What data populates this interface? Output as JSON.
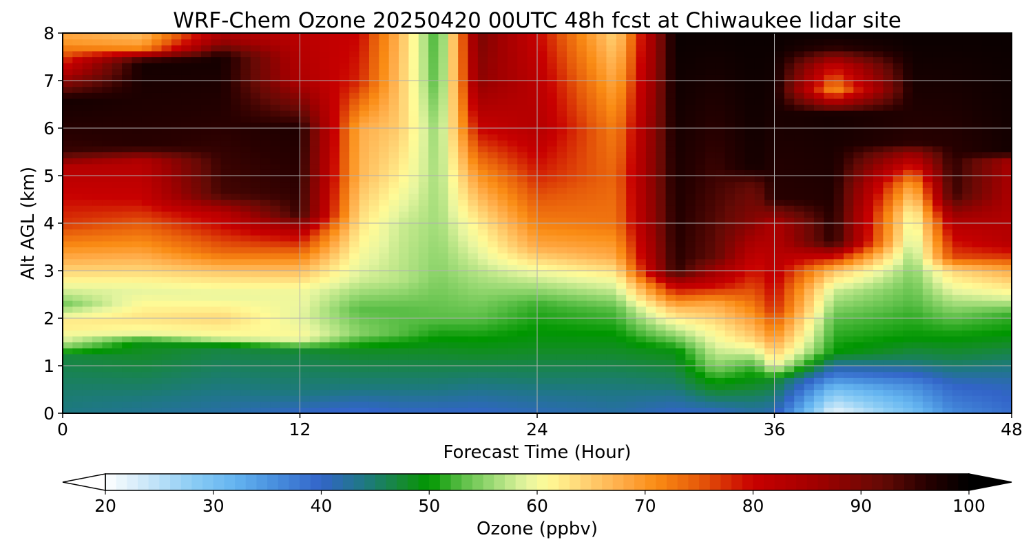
{
  "chart_data": {
    "type": "heatmap",
    "title": "WRF-Chem Ozone  20250420 00UTC 48h fcst at Chiwaukee lidar site",
    "xlabel": "Forecast Time (Hour)",
    "ylabel": "Alt AGL (km)",
    "xlim": [
      0,
      48
    ],
    "ylim": [
      0,
      8
    ],
    "x_ticks": [
      "0",
      "12",
      "24",
      "36",
      "48"
    ],
    "y_ticks": [
      "0",
      "1",
      "2",
      "3",
      "4",
      "5",
      "6",
      "7",
      "8"
    ],
    "grid": true,
    "colorbar": {
      "label": "Ozone  (ppbv)",
      "range": [
        20,
        100
      ],
      "ticks": [
        "20",
        "30",
        "40",
        "50",
        "60",
        "70",
        "80",
        "90",
        "100"
      ],
      "extend": "both",
      "orientation": "horizontal"
    },
    "field_description": "Ozone concentration (ppbv) as a function of forecast hour (x) and altitude above ground (y)",
    "profiles": [
      {
        "hour": 0,
        "levels": [
          [
            0,
            44
          ],
          [
            0.5,
            45
          ],
          [
            1.2,
            47
          ],
          [
            1.5,
            58
          ],
          [
            1.9,
            63
          ],
          [
            2.3,
            54
          ],
          [
            2.7,
            60
          ],
          [
            3.2,
            67
          ],
          [
            4.0,
            77
          ],
          [
            5.2,
            83
          ],
          [
            5.5,
            95
          ],
          [
            6.6,
            98
          ],
          [
            7.2,
            82
          ],
          [
            7.8,
            70
          ],
          [
            8,
            68
          ]
        ]
      },
      {
        "hour": 4,
        "levels": [
          [
            0,
            43
          ],
          [
            0.5,
            45
          ],
          [
            1.5,
            49
          ],
          [
            1.7,
            60
          ],
          [
            2.0,
            63
          ],
          [
            2.6,
            59
          ],
          [
            3.0,
            64
          ],
          [
            3.5,
            70
          ],
          [
            4.5,
            80
          ],
          [
            5.3,
            83
          ],
          [
            5.6,
            96
          ],
          [
            7.4,
            98
          ],
          [
            7.7,
            70
          ],
          [
            8,
            66
          ]
        ]
      },
      {
        "hour": 8,
        "levels": [
          [
            0,
            42
          ],
          [
            0.5,
            44
          ],
          [
            1.4,
            47
          ],
          [
            1.6,
            60
          ],
          [
            2.0,
            64
          ],
          [
            2.5,
            59
          ],
          [
            2.9,
            64
          ],
          [
            3.4,
            74
          ],
          [
            4.2,
            82
          ],
          [
            4.6,
            94
          ],
          [
            7.5,
            98
          ],
          [
            7.8,
            88
          ],
          [
            8,
            84
          ]
        ]
      },
      {
        "hour": 12,
        "levels": [
          [
            0,
            40
          ],
          [
            0.4,
            44
          ],
          [
            1.3,
            47
          ],
          [
            1.6,
            61
          ],
          [
            2.0,
            59
          ],
          [
            2.6,
            60
          ],
          [
            3.1,
            68
          ],
          [
            3.8,
            82
          ],
          [
            4.2,
            95
          ],
          [
            6.0,
            97
          ],
          [
            7.0,
            84
          ],
          [
            8,
            82
          ]
        ]
      },
      {
        "hour": 15,
        "levels": [
          [
            0,
            39
          ],
          [
            0.5,
            44
          ],
          [
            1.3,
            48
          ],
          [
            1.7,
            55
          ],
          [
            2.2,
            53
          ],
          [
            2.8,
            58
          ],
          [
            4.0,
            63
          ],
          [
            5.0,
            67
          ],
          [
            6.0,
            68
          ],
          [
            7.0,
            78
          ],
          [
            8,
            80
          ]
        ]
      },
      {
        "hour": 17,
        "levels": [
          [
            0,
            40
          ],
          [
            0.5,
            44
          ],
          [
            1.3,
            48
          ],
          [
            1.7,
            53
          ],
          [
            2.2,
            53
          ],
          [
            2.8,
            57
          ],
          [
            4.0,
            58
          ],
          [
            5.0,
            62
          ],
          [
            6.0,
            65
          ],
          [
            7.0,
            66
          ],
          [
            8,
            67
          ]
        ]
      },
      {
        "hour": 19,
        "levels": [
          [
            0,
            40
          ],
          [
            0.5,
            44
          ],
          [
            1.3,
            48
          ],
          [
            2.0,
            53
          ],
          [
            3.0,
            55
          ],
          [
            4.0,
            56
          ],
          [
            5.0,
            56
          ],
          [
            6.0,
            55
          ],
          [
            7.0,
            52
          ],
          [
            8,
            51
          ]
        ]
      },
      {
        "hour": 21,
        "levels": [
          [
            0,
            40
          ],
          [
            0.6,
            44
          ],
          [
            1.4,
            49
          ],
          [
            2.0,
            53
          ],
          [
            3.0,
            57
          ],
          [
            4.0,
            62
          ],
          [
            5.0,
            70
          ],
          [
            6.0,
            80
          ],
          [
            7.0,
            88
          ],
          [
            8,
            90
          ]
        ]
      },
      {
        "hour": 24,
        "levels": [
          [
            0,
            41
          ],
          [
            0.7,
            45
          ],
          [
            1.5,
            49
          ],
          [
            2.3,
            52
          ],
          [
            3.0,
            60
          ],
          [
            3.5,
            68
          ],
          [
            4.0,
            72
          ],
          [
            5.0,
            78
          ],
          [
            6.0,
            83
          ],
          [
            7.0,
            82
          ],
          [
            8,
            80
          ]
        ]
      },
      {
        "hour": 28,
        "levels": [
          [
            0,
            42
          ],
          [
            0.7,
            45
          ],
          [
            1.5,
            49
          ],
          [
            2.2,
            53
          ],
          [
            2.8,
            60
          ],
          [
            3.3,
            68
          ],
          [
            4.0,
            73
          ],
          [
            5.0,
            74
          ],
          [
            6.0,
            72
          ],
          [
            7.0,
            68
          ],
          [
            8,
            64
          ]
        ]
      },
      {
        "hour": 31,
        "levels": [
          [
            0,
            40
          ],
          [
            0.6,
            45
          ],
          [
            1.3,
            49
          ],
          [
            1.8,
            58
          ],
          [
            2.2,
            66
          ],
          [
            2.7,
            82
          ],
          [
            3.0,
            96
          ],
          [
            8,
            99
          ]
        ]
      },
      {
        "hour": 33,
        "levels": [
          [
            0,
            40
          ],
          [
            0.3,
            45
          ],
          [
            1.0,
            55
          ],
          [
            1.8,
            62
          ],
          [
            2.3,
            68
          ],
          [
            2.7,
            80
          ],
          [
            3.3,
            92
          ],
          [
            8,
            99
          ]
        ]
      },
      {
        "hour": 35,
        "levels": [
          [
            0,
            42
          ],
          [
            0.4,
            46
          ],
          [
            1.0,
            52
          ],
          [
            1.6,
            65
          ],
          [
            2.4,
            74
          ],
          [
            3.2,
            80
          ],
          [
            4.0,
            88
          ],
          [
            4.8,
            92
          ],
          [
            5.2,
            98
          ],
          [
            8,
            99
          ]
        ]
      },
      {
        "hour": 36,
        "levels": [
          [
            0,
            41
          ],
          [
            0.7,
            48
          ],
          [
            1.0,
            60
          ],
          [
            1.6,
            70
          ],
          [
            2.2,
            78
          ],
          [
            3.0,
            82
          ],
          [
            4.0,
            84
          ],
          [
            4.5,
            96
          ],
          [
            8,
            99
          ]
        ]
      },
      {
        "hour": 39,
        "levels": [
          [
            0,
            21
          ],
          [
            0.5,
            30
          ],
          [
            0.9,
            40
          ],
          [
            1.3,
            50
          ],
          [
            2.0,
            53
          ],
          [
            2.6,
            58
          ],
          [
            3.0,
            66
          ],
          [
            3.3,
            80
          ],
          [
            3.6,
            96
          ],
          [
            6.3,
            98
          ],
          [
            6.8,
            70
          ],
          [
            7.3,
            80
          ],
          [
            7.7,
            96
          ],
          [
            8,
            99
          ]
        ]
      },
      {
        "hour": 43,
        "levels": [
          [
            0,
            30
          ],
          [
            0.6,
            36
          ],
          [
            1.1,
            45
          ],
          [
            1.6,
            50
          ],
          [
            2.4,
            53
          ],
          [
            3.4,
            56
          ],
          [
            4.2,
            60
          ],
          [
            4.8,
            68
          ],
          [
            5.4,
            84
          ],
          [
            5.7,
            96
          ],
          [
            8,
            99
          ]
        ]
      },
      {
        "hour": 45,
        "levels": [
          [
            0,
            36
          ],
          [
            0.6,
            40
          ],
          [
            1.1,
            46
          ],
          [
            1.6,
            50
          ],
          [
            2.0,
            53
          ],
          [
            2.5,
            58
          ],
          [
            3.0,
            64
          ],
          [
            3.3,
            76
          ],
          [
            4.0,
            83
          ],
          [
            4.6,
            95
          ],
          [
            8,
            99
          ]
        ]
      },
      {
        "hour": 48,
        "levels": [
          [
            0,
            39
          ],
          [
            0.6,
            41
          ],
          [
            1.1,
            45
          ],
          [
            1.7,
            50
          ],
          [
            2.1,
            52
          ],
          [
            2.5,
            60
          ],
          [
            3.0,
            68
          ],
          [
            3.3,
            77
          ],
          [
            3.6,
            83
          ],
          [
            5.3,
            85
          ],
          [
            5.5,
            98
          ],
          [
            8,
            99
          ]
        ]
      }
    ]
  }
}
